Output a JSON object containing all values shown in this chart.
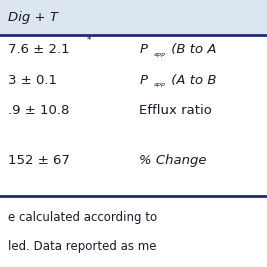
{
  "header_bg": "#dce6f1",
  "header_text": "Dig + T",
  "separator_color": "#1f2d6e",
  "bg_color": "#ffffff",
  "text_color": "#1a1a2e",
  "footer_text_color": "#1a1a2e",
  "row1_col1": "7.6 ± 2.1",
  "row1_star": "*",
  "row1_col2_p": "P",
  "row1_col2_sub": "app",
  "row1_col2_rest": " (B to A",
  "row2_col1": "3 ± 0.1",
  "row2_col2_p": "P",
  "row2_col2_sub": "app",
  "row2_col2_rest": " (A to B",
  "row3_col1": ".9 ± 10.8",
  "row3_col2": "Efflux ratio",
  "row4_col1": "152 ± 67",
  "row4_col2": "% Change ",
  "footer_line1": "e calculated according to",
  "footer_line2": "led. Data reported as me",
  "font_size_header": 9.5,
  "font_size_body": 9.5,
  "font_size_footer": 8.5,
  "font_size_sub": 6.5
}
